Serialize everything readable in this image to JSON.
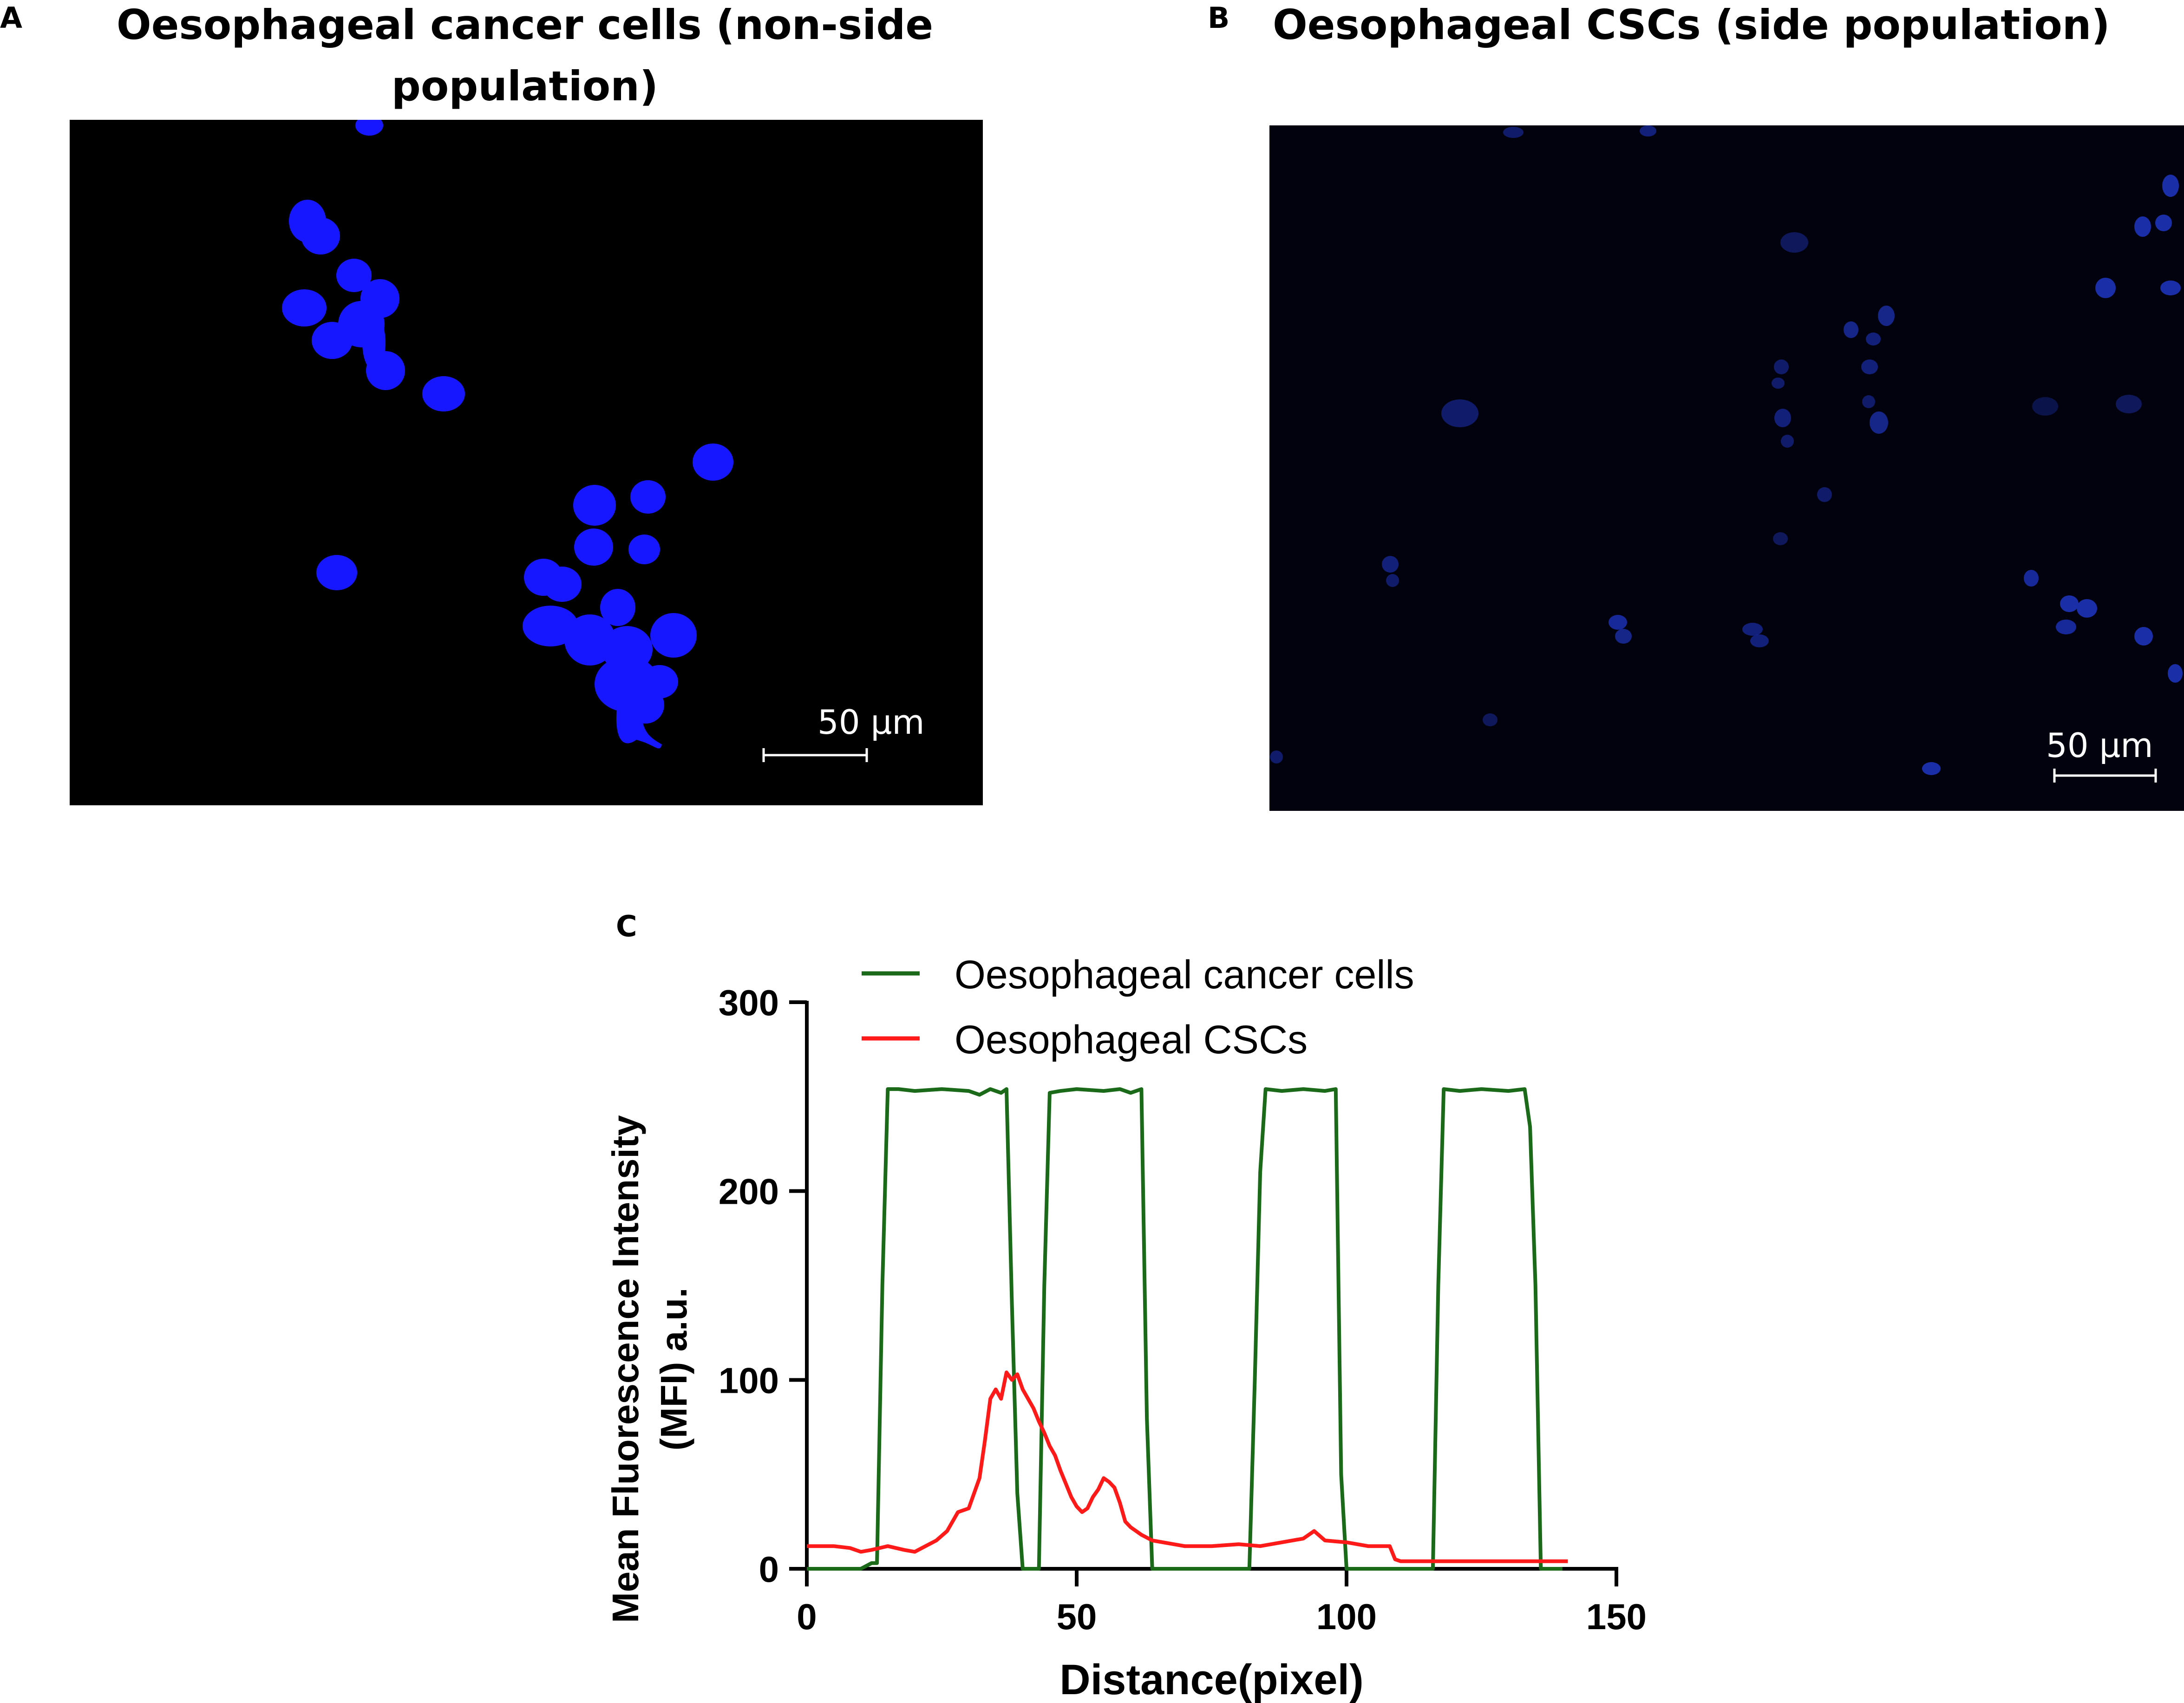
{
  "panels": {
    "a": {
      "letter": "A",
      "title_line1": "Oesophageal cancer cells  (non-side",
      "title_line2": "population)",
      "scale_bar_label": "50 µm"
    },
    "b": {
      "letter": "B",
      "title": "Oesophageal CSCs (side population)",
      "scale_bar_label": "50 µm"
    },
    "c": {
      "letter": "C"
    }
  },
  "colors": {
    "nucleus_bright": "#1616ff",
    "nucleus_dim": "#1a2ea8",
    "green_series": "#1a6a1a",
    "red_series": "#ff1a1a"
  },
  "chart_data": {
    "type": "line",
    "xlabel": "Distance(pixel)",
    "ylabel_line1": "Mean Fluorescence Intensity",
    "ylabel_line2": "(MFI) a.u.",
    "xlim": [
      0,
      150
    ],
    "ylim": [
      0,
      300
    ],
    "xticks": [
      0,
      50,
      100,
      150
    ],
    "yticks": [
      0,
      100,
      200,
      300
    ],
    "legend_position": "top",
    "series": [
      {
        "name": "Oesophageal cancer cells",
        "color": "#1a6a1a",
        "points": [
          [
            0,
            0
          ],
          [
            10,
            0
          ],
          [
            12,
            3
          ],
          [
            13,
            3
          ],
          [
            14,
            150
          ],
          [
            15,
            254
          ],
          [
            17,
            254
          ],
          [
            20,
            253
          ],
          [
            25,
            254
          ],
          [
            30,
            253
          ],
          [
            32,
            251
          ],
          [
            34,
            254
          ],
          [
            36,
            252
          ],
          [
            37,
            254
          ],
          [
            38,
            140
          ],
          [
            39,
            40
          ],
          [
            40,
            0
          ],
          [
            43,
            0
          ],
          [
            44,
            150
          ],
          [
            45,
            252
          ],
          [
            47,
            253
          ],
          [
            50,
            254
          ],
          [
            55,
            253
          ],
          [
            58,
            254
          ],
          [
            60,
            252
          ],
          [
            62,
            254
          ],
          [
            63,
            80
          ],
          [
            64,
            0
          ],
          [
            70,
            0
          ],
          [
            82,
            0
          ],
          [
            83,
            100
          ],
          [
            84,
            210
          ],
          [
            85,
            254
          ],
          [
            88,
            253
          ],
          [
            92,
            254
          ],
          [
            96,
            253
          ],
          [
            98,
            254
          ],
          [
            99,
            50
          ],
          [
            100,
            0
          ],
          [
            116,
            0
          ],
          [
            117,
            150
          ],
          [
            118,
            254
          ],
          [
            121,
            253
          ],
          [
            125,
            254
          ],
          [
            130,
            253
          ],
          [
            133,
            254
          ],
          [
            134,
            234
          ],
          [
            135,
            150
          ],
          [
            136,
            0
          ],
          [
            140,
            0
          ]
        ]
      },
      {
        "name": "Oesophageal CSCs",
        "color": "#ff1a1a",
        "points": [
          [
            0,
            12
          ],
          [
            5,
            12
          ],
          [
            8,
            11
          ],
          [
            10,
            9
          ],
          [
            12,
            10
          ],
          [
            15,
            12
          ],
          [
            18,
            10
          ],
          [
            20,
            9
          ],
          [
            22,
            12
          ],
          [
            24,
            15
          ],
          [
            26,
            20
          ],
          [
            28,
            30
          ],
          [
            30,
            32
          ],
          [
            31,
            40
          ],
          [
            32,
            48
          ],
          [
            33,
            68
          ],
          [
            34,
            90
          ],
          [
            35,
            95
          ],
          [
            36,
            90
          ],
          [
            37,
            104
          ],
          [
            38,
            100
          ],
          [
            39,
            103
          ],
          [
            40,
            95
          ],
          [
            41,
            90
          ],
          [
            42,
            85
          ],
          [
            43,
            78
          ],
          [
            44,
            72
          ],
          [
            45,
            65
          ],
          [
            46,
            60
          ],
          [
            47,
            52
          ],
          [
            48,
            45
          ],
          [
            49,
            38
          ],
          [
            50,
            33
          ],
          [
            51,
            30
          ],
          [
            52,
            32
          ],
          [
            53,
            38
          ],
          [
            54,
            42
          ],
          [
            55,
            48
          ],
          [
            56,
            46
          ],
          [
            57,
            43
          ],
          [
            58,
            35
          ],
          [
            59,
            25
          ],
          [
            60,
            22
          ],
          [
            62,
            18
          ],
          [
            64,
            15
          ],
          [
            66,
            14
          ],
          [
            70,
            12
          ],
          [
            75,
            12
          ],
          [
            80,
            13
          ],
          [
            84,
            12
          ],
          [
            88,
            14
          ],
          [
            92,
            16
          ],
          [
            94,
            20
          ],
          [
            96,
            15
          ],
          [
            100,
            14
          ],
          [
            104,
            12
          ],
          [
            108,
            12
          ],
          [
            109,
            5
          ],
          [
            110,
            4
          ],
          [
            120,
            4
          ],
          [
            130,
            4
          ],
          [
            141,
            4
          ]
        ]
      }
    ]
  }
}
